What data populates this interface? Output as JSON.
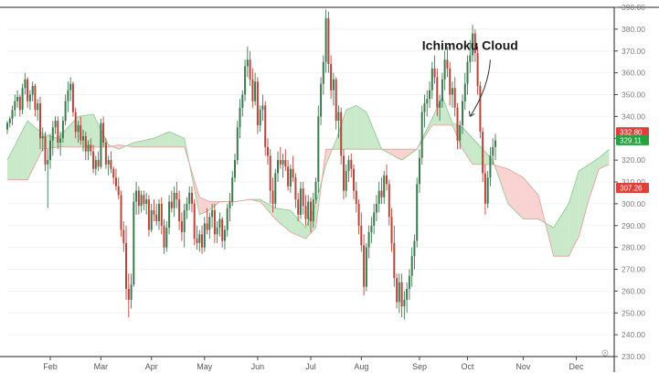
{
  "chart_data": {
    "type": "candlestick",
    "title": "",
    "xlabel": "",
    "ylabel": "",
    "ylim": [
      230,
      390
    ],
    "y_ticks": [
      230,
      240,
      250,
      260,
      270,
      280,
      290,
      300,
      310,
      320,
      330,
      340,
      350,
      360,
      370,
      380,
      390
    ],
    "y_tick_labels": [
      "230.00",
      "240.00",
      "250.00",
      "260.00",
      "270.00",
      "280.00",
      "290.00",
      "300.00",
      "310.00",
      "320.00",
      "330.00",
      "340.00",
      "350.00",
      "360.00",
      "370.00",
      "380.00",
      "390.00"
    ],
    "x_range": [
      0,
      240
    ],
    "months": [
      {
        "label": "Feb",
        "x": 17
      },
      {
        "label": "Mar",
        "x": 37
      },
      {
        "label": "Apr",
        "x": 57
      },
      {
        "label": "May",
        "x": 78
      },
      {
        "label": "Jun",
        "x": 99
      },
      {
        "label": "Jul",
        "x": 120
      },
      {
        "label": "Aug",
        "x": 140
      },
      {
        "label": "Sep",
        "x": 163
      },
      {
        "label": "Oct",
        "x": 182
      },
      {
        "label": "Nov",
        "x": 204
      },
      {
        "label": "Dec",
        "x": 225
      }
    ],
    "annotation": {
      "text": "Ichimoku Cloud",
      "x": 183,
      "y": 340
    },
    "price_badges": [
      {
        "value": 332.8,
        "label": "332.80",
        "color": "#e0403a"
      },
      {
        "value": 329.11,
        "label": "329.11",
        "color": "#26a041"
      },
      {
        "value": 307.26,
        "label": "307.26",
        "color": "#e0403a"
      }
    ],
    "colors": {
      "up": "#3c7a4f",
      "down": "#b9453b",
      "cloud_bull_fill": "#c7e8c8",
      "cloud_bear_fill": "#f9d0d0",
      "cloud_bull_line": "#86c88a",
      "cloud_bear_line": "#e79a98"
    },
    "cloud": {
      "x": [
        0,
        8,
        14,
        20,
        28,
        34,
        40,
        44,
        50,
        58,
        64,
        70,
        76,
        80,
        84,
        90,
        96,
        100,
        106,
        112,
        118,
        122,
        126,
        130,
        134,
        138,
        142,
        148,
        156,
        162,
        168,
        172,
        176,
        180,
        184,
        188,
        192,
        198,
        204,
        210,
        216,
        222,
        226,
        230,
        234,
        238
      ],
      "span_a": [
        320,
        338,
        332,
        330,
        340,
        341,
        327,
        325,
        328,
        330,
        333,
        330,
        295,
        297,
        301,
        301,
        302,
        302,
        298,
        297,
        289,
        300,
        318,
        329,
        343,
        345,
        342,
        325,
        320,
        325,
        339,
        349,
        337,
        335,
        330,
        325,
        320,
        300,
        293,
        293,
        289,
        300,
        315,
        318,
        321,
        325
      ],
      "span_b": [
        311,
        311,
        325,
        326,
        326,
        326,
        326,
        327,
        326,
        326,
        326,
        326,
        303,
        301,
        301,
        301,
        302,
        301,
        293,
        287,
        284,
        289,
        325,
        325,
        325,
        325,
        325,
        325,
        325,
        325,
        336,
        336,
        336,
        325,
        318,
        318,
        318,
        316,
        312,
        304,
        276,
        276,
        285,
        302,
        316,
        318
      ]
    },
    "candles": [
      [
        0,
        334,
        338,
        332,
        337
      ],
      [
        1,
        337,
        340,
        335,
        339
      ],
      [
        2,
        339,
        345,
        336,
        343
      ],
      [
        3,
        343,
        350,
        340,
        347
      ],
      [
        4,
        347,
        352,
        344,
        349
      ],
      [
        5,
        349,
        350,
        340,
        343
      ],
      [
        6,
        343,
        355,
        341,
        353
      ],
      [
        7,
        353,
        360,
        350,
        357
      ],
      [
        8,
        357,
        358,
        344,
        347
      ],
      [
        9,
        347,
        352,
        343,
        350
      ],
      [
        10,
        350,
        356,
        347,
        354
      ],
      [
        11,
        354,
        355,
        340,
        343
      ],
      [
        12,
        343,
        348,
        338,
        346
      ],
      [
        13,
        346,
        349,
        325,
        330
      ],
      [
        14,
        330,
        335,
        324,
        331
      ],
      [
        15,
        331,
        333,
        315,
        318
      ],
      [
        16,
        318,
        325,
        298,
        320
      ],
      [
        17,
        320,
        332,
        316,
        329
      ],
      [
        18,
        329,
        338,
        322,
        335
      ],
      [
        19,
        335,
        340,
        332,
        338
      ],
      [
        20,
        338,
        340,
        325,
        328
      ],
      [
        21,
        328,
        333,
        322,
        330
      ],
      [
        22,
        330,
        340,
        328,
        338
      ],
      [
        23,
        338,
        350,
        336,
        347
      ],
      [
        24,
        347,
        356,
        342,
        352
      ],
      [
        25,
        352,
        358,
        347,
        355
      ],
      [
        26,
        355,
        356,
        340,
        342
      ],
      [
        27,
        342,
        344,
        330,
        333
      ],
      [
        28,
        333,
        338,
        328,
        336
      ],
      [
        29,
        336,
        340,
        327,
        329
      ],
      [
        30,
        329,
        334,
        324,
        331
      ],
      [
        31,
        331,
        333,
        320,
        324
      ],
      [
        32,
        324,
        329,
        320,
        327
      ],
      [
        33,
        327,
        330,
        322,
        324
      ],
      [
        34,
        324,
        327,
        314,
        316
      ],
      [
        35,
        316,
        322,
        313,
        320
      ],
      [
        36,
        320,
        324,
        315,
        317
      ],
      [
        37,
        317,
        339,
        316,
        337
      ],
      [
        38,
        337,
        340,
        326,
        328
      ],
      [
        39,
        328,
        330,
        316,
        318
      ],
      [
        40,
        318,
        322,
        313,
        320
      ],
      [
        41,
        320,
        324,
        314,
        316
      ],
      [
        42,
        316,
        317,
        309,
        312
      ],
      [
        43,
        312,
        316,
        306,
        308
      ],
      [
        44,
        308,
        312,
        302,
        304
      ],
      [
        45,
        304,
        306,
        285,
        288
      ],
      [
        46,
        288,
        292,
        278,
        282
      ],
      [
        47,
        282,
        290,
        256,
        261
      ],
      [
        48,
        261,
        268,
        248,
        256
      ],
      [
        49,
        256,
        268,
        252,
        263
      ],
      [
        50,
        263,
        305,
        262,
        301
      ],
      [
        51,
        301,
        310,
        295,
        306
      ],
      [
        52,
        306,
        308,
        295,
        299
      ],
      [
        53,
        299,
        306,
        296,
        304
      ],
      [
        54,
        304,
        306,
        297,
        300
      ],
      [
        55,
        300,
        305,
        295,
        302
      ],
      [
        56,
        302,
        304,
        285,
        288
      ],
      [
        57,
        288,
        300,
        287,
        297
      ],
      [
        58,
        297,
        302,
        292,
        295
      ],
      [
        59,
        295,
        300,
        290,
        292
      ],
      [
        60,
        292,
        302,
        288,
        300
      ],
      [
        61,
        300,
        303,
        286,
        290
      ],
      [
        62,
        290,
        293,
        277,
        280
      ],
      [
        63,
        280,
        292,
        278,
        289
      ],
      [
        64,
        289,
        304,
        286,
        301
      ],
      [
        65,
        301,
        306,
        296,
        298
      ],
      [
        66,
        298,
        308,
        294,
        305
      ],
      [
        67,
        305,
        310,
        298,
        302
      ],
      [
        68,
        302,
        306,
        288,
        292
      ],
      [
        69,
        292,
        296,
        283,
        287
      ],
      [
        70,
        287,
        300,
        280,
        297
      ],
      [
        71,
        297,
        303,
        293,
        300
      ],
      [
        72,
        300,
        308,
        297,
        305
      ],
      [
        73,
        305,
        308,
        296,
        300
      ],
      [
        74,
        300,
        302,
        281,
        284
      ],
      [
        75,
        284,
        290,
        279,
        282
      ],
      [
        76,
        282,
        288,
        278,
        286
      ],
      [
        77,
        286,
        290,
        277,
        280
      ],
      [
        78,
        280,
        294,
        278,
        291
      ],
      [
        79,
        291,
        298,
        286,
        288
      ],
      [
        80,
        288,
        296,
        284,
        294
      ],
      [
        81,
        294,
        300,
        289,
        297
      ],
      [
        82,
        297,
        300,
        282,
        286
      ],
      [
        83,
        286,
        292,
        282,
        289
      ],
      [
        84,
        289,
        296,
        285,
        293
      ],
      [
        85,
        293,
        294,
        280,
        283
      ],
      [
        86,
        283,
        290,
        279,
        288
      ],
      [
        87,
        288,
        300,
        285,
        298
      ],
      [
        88,
        298,
        305,
        292,
        301
      ],
      [
        89,
        301,
        315,
        299,
        312
      ],
      [
        90,
        312,
        323,
        310,
        320
      ],
      [
        91,
        320,
        338,
        318,
        335
      ],
      [
        92,
        335,
        348,
        330,
        344
      ],
      [
        93,
        344,
        352,
        340,
        350
      ],
      [
        94,
        350,
        366,
        347,
        363
      ],
      [
        95,
        363,
        372,
        358,
        366
      ],
      [
        96,
        366,
        370,
        354,
        357
      ],
      [
        97,
        357,
        362,
        344,
        347
      ],
      [
        98,
        347,
        360,
        345,
        356
      ],
      [
        99,
        356,
        358,
        332,
        336
      ],
      [
        100,
        336,
        345,
        333,
        343
      ],
      [
        101,
        343,
        350,
        338,
        345
      ],
      [
        102,
        345,
        347,
        322,
        326
      ],
      [
        103,
        326,
        330,
        318,
        322
      ],
      [
        104,
        322,
        325,
        300,
        306
      ],
      [
        105,
        306,
        312,
        296,
        300
      ],
      [
        106,
        300,
        316,
        298,
        314
      ],
      [
        107,
        314,
        324,
        310,
        320
      ],
      [
        108,
        320,
        326,
        316,
        318
      ],
      [
        109,
        318,
        323,
        312,
        320
      ],
      [
        110,
        320,
        325,
        315,
        317
      ],
      [
        111,
        317,
        320,
        306,
        308
      ],
      [
        112,
        308,
        318,
        305,
        316
      ],
      [
        113,
        316,
        322,
        310,
        312
      ],
      [
        114,
        312,
        314,
        298,
        302
      ],
      [
        115,
        302,
        305,
        292,
        295
      ],
      [
        116,
        295,
        310,
        293,
        307
      ],
      [
        117,
        307,
        310,
        295,
        299
      ],
      [
        118,
        299,
        304,
        290,
        293
      ],
      [
        119,
        293,
        304,
        290,
        301
      ],
      [
        120,
        301,
        303,
        287,
        292
      ],
      [
        121,
        292,
        305,
        289,
        302
      ],
      [
        122,
        302,
        312,
        300,
        310
      ],
      [
        123,
        310,
        345,
        305,
        340
      ],
      [
        124,
        340,
        358,
        336,
        355
      ],
      [
        125,
        355,
        368,
        350,
        365
      ],
      [
        126,
        365,
        389,
        360,
        385
      ],
      [
        127,
        385,
        388,
        360,
        364
      ],
      [
        128,
        364,
        368,
        348,
        352
      ],
      [
        129,
        352,
        360,
        345,
        357
      ],
      [
        130,
        357,
        358,
        334,
        338
      ],
      [
        131,
        338,
        345,
        330,
        342
      ],
      [
        132,
        342,
        344,
        318,
        322
      ],
      [
        133,
        322,
        325,
        302,
        306
      ],
      [
        134,
        306,
        318,
        303,
        315
      ],
      [
        135,
        315,
        322,
        310,
        320
      ],
      [
        136,
        320,
        323,
        312,
        316
      ],
      [
        137,
        316,
        318,
        302,
        306
      ],
      [
        138,
        306,
        310,
        296,
        300
      ],
      [
        139,
        300,
        302,
        286,
        290
      ],
      [
        140,
        290,
        296,
        278,
        281
      ],
      [
        141,
        281,
        286,
        258,
        262
      ],
      [
        142,
        262,
        282,
        260,
        280
      ],
      [
        143,
        280,
        290,
        275,
        287
      ],
      [
        144,
        287,
        294,
        282,
        290
      ],
      [
        145,
        290,
        300,
        286,
        296
      ],
      [
        146,
        296,
        304,
        292,
        300
      ],
      [
        147,
        300,
        310,
        296,
        306
      ],
      [
        148,
        306,
        312,
        300,
        303
      ],
      [
        149,
        303,
        315,
        300,
        313
      ],
      [
        150,
        313,
        318,
        306,
        309
      ],
      [
        151,
        309,
        311,
        290,
        294
      ],
      [
        152,
        294,
        298,
        278,
        282
      ],
      [
        153,
        282,
        290,
        262,
        266
      ],
      [
        154,
        266,
        268,
        252,
        255
      ],
      [
        155,
        255,
        268,
        250,
        264
      ],
      [
        156,
        264,
        268,
        248,
        253
      ],
      [
        157,
        253,
        260,
        247,
        256
      ],
      [
        158,
        256,
        264,
        250,
        261
      ],
      [
        159,
        261,
        270,
        256,
        267
      ],
      [
        160,
        267,
        280,
        262,
        276
      ],
      [
        161,
        276,
        286,
        270,
        283
      ],
      [
        162,
        283,
        312,
        280,
        309
      ],
      [
        163,
        309,
        325,
        305,
        321
      ],
      [
        164,
        321,
        345,
        318,
        342
      ],
      [
        165,
        342,
        350,
        335,
        346
      ],
      [
        166,
        346,
        352,
        340,
        348
      ],
      [
        167,
        348,
        356,
        344,
        352
      ],
      [
        168,
        352,
        365,
        348,
        362
      ],
      [
        169,
        362,
        368,
        355,
        358
      ],
      [
        170,
        358,
        362,
        340,
        344
      ],
      [
        171,
        344,
        350,
        338,
        347
      ],
      [
        172,
        347,
        360,
        344,
        357
      ],
      [
        173,
        357,
        370,
        352,
        366
      ],
      [
        174,
        366,
        372,
        358,
        362
      ],
      [
        175,
        362,
        365,
        345,
        350
      ],
      [
        176,
        350,
        356,
        344,
        353
      ],
      [
        177,
        353,
        358,
        340,
        344
      ],
      [
        178,
        344,
        346,
        325,
        329
      ],
      [
        179,
        329,
        338,
        325,
        336
      ],
      [
        180,
        336,
        350,
        332,
        347
      ],
      [
        181,
        347,
        360,
        343,
        355
      ],
      [
        182,
        355,
        368,
        350,
        365
      ],
      [
        183,
        365,
        375,
        360,
        368
      ],
      [
        184,
        368,
        382,
        365,
        378
      ],
      [
        185,
        378,
        380,
        365,
        369
      ],
      [
        186,
        369,
        372,
        350,
        354
      ],
      [
        187,
        354,
        356,
        330,
        333
      ],
      [
        188,
        333,
        335,
        310,
        314
      ],
      [
        189,
        314,
        318,
        295,
        300
      ],
      [
        190,
        300,
        315,
        298,
        312
      ],
      [
        191,
        312,
        326,
        308,
        322
      ],
      [
        192,
        322,
        330,
        318,
        326
      ],
      [
        193,
        326,
        332,
        320,
        329
      ]
    ]
  }
}
